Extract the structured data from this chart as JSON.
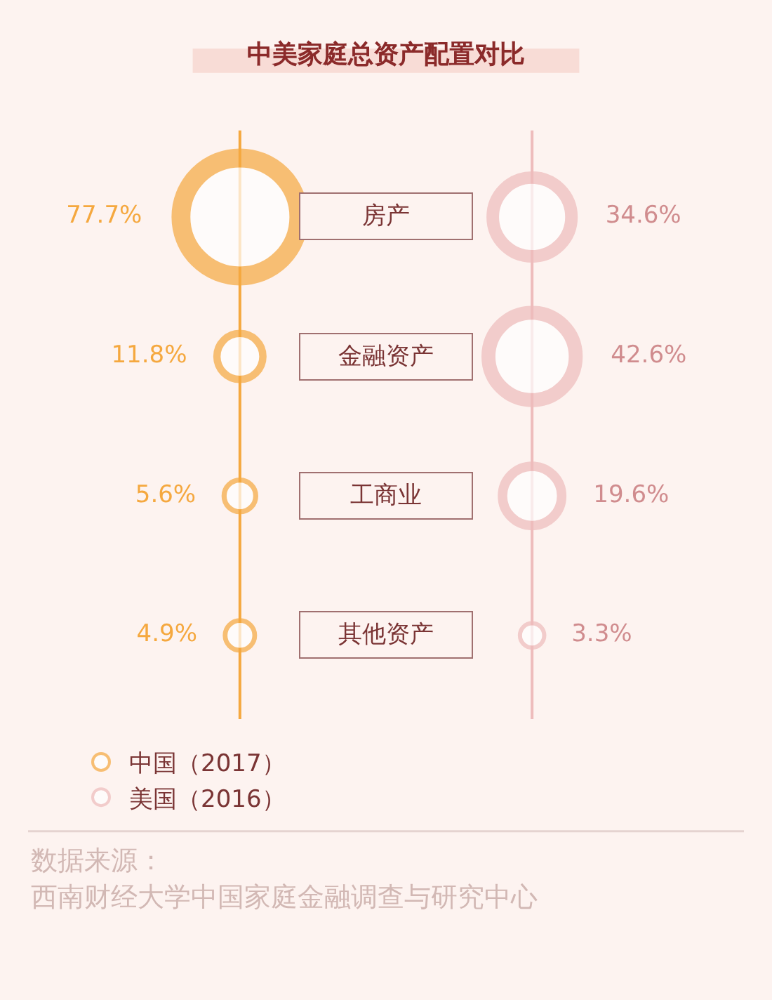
{
  "chart_data": {
    "type": "other",
    "title": "中美家庭总资产配置对比",
    "categories": [
      "房产",
      "金融资产",
      "工商业",
      "其他资产"
    ],
    "series": [
      {
        "name": "中国（2017）",
        "color": "#f5a83f",
        "values": [
          77.7,
          11.8,
          5.6,
          4.9
        ],
        "value_labels": [
          "77.7%",
          "11.8%",
          "5.6%",
          "4.9%"
        ]
      },
      {
        "name": "美国（2016）",
        "color": "#eebcbc",
        "values": [
          34.6,
          42.6,
          19.6,
          3.3
        ],
        "value_labels": [
          "34.6%",
          "42.6%",
          "19.6%",
          "3.3%"
        ]
      }
    ],
    "legend": "bottom",
    "annotations": [
      "数据来源：",
      "西南财经大学中国家庭金融调查与研究中心"
    ]
  }
}
